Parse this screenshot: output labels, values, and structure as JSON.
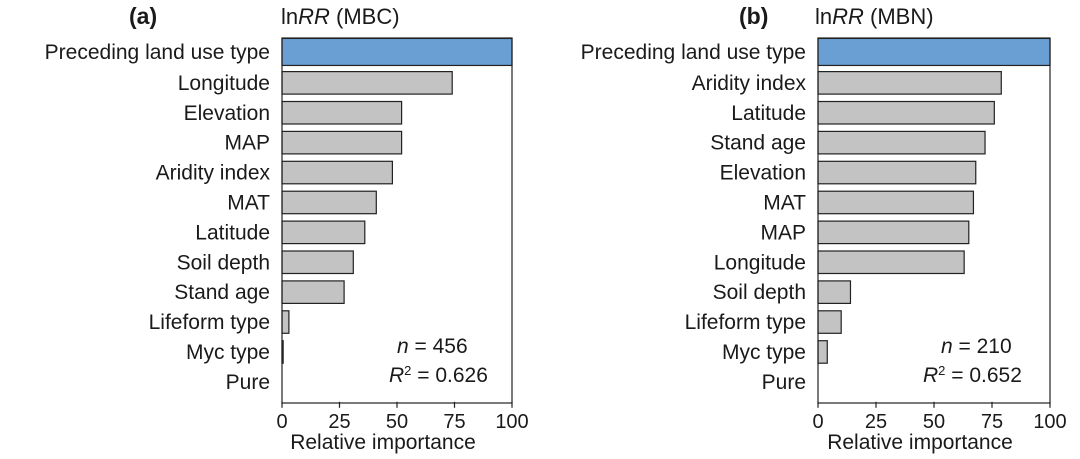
{
  "figure": {
    "panels": [
      {
        "letter": "(a)",
        "title_prefix": "ln",
        "title_italic": "RR",
        "title_suffix": " (MBC)",
        "n_symbol": "n",
        "n_text": " = 456",
        "r2_symbol": "R",
        "r2_exp": "2",
        "r2_text": " = 0.626"
      },
      {
        "letter": "(b)",
        "title_prefix": "ln",
        "title_italic": "RR",
        "title_suffix": " (MBN)",
        "n_symbol": "n",
        "n_text": " = 210",
        "r2_symbol": "R",
        "r2_exp": "2",
        "r2_text": " = 0.652"
      }
    ]
  },
  "chart_data": [
    {
      "type": "bar",
      "orientation": "horizontal",
      "title": "lnRR (MBC)",
      "xlabel": "Relative importance",
      "xlim": [
        0,
        100
      ],
      "xticks": [
        "0",
        "25",
        "50",
        "75",
        "100"
      ],
      "grid": false,
      "categories": [
        "Preceding land use type",
        "Longitude",
        "Elevation",
        "MAP",
        "Aridity index",
        "MAT",
        "Latitude",
        "Soil depth",
        "Stand age",
        "Lifeform type",
        "Myc type",
        "Pure"
      ],
      "values": [
        100,
        74,
        52,
        52,
        48,
        41,
        36,
        31,
        27,
        3,
        0.5,
        0
      ],
      "colors": {
        "highlight": "#6a9fd3",
        "bar": "#c3c3c3",
        "edge": "#222222"
      },
      "annotations": [
        "n = 456",
        "R2 = 0.626"
      ]
    },
    {
      "type": "bar",
      "orientation": "horizontal",
      "title": "lnRR (MBN)",
      "xlabel": "Relative importance",
      "xlim": [
        0,
        100
      ],
      "xticks": [
        "0",
        "25",
        "50",
        "75",
        "100"
      ],
      "grid": false,
      "categories": [
        "Preceding land use type",
        "Aridity index",
        "Latitude",
        "Stand age",
        "Elevation",
        "MAT",
        "MAP",
        "Longitude",
        "Soil depth",
        "Lifeform type",
        "Myc type",
        "Pure"
      ],
      "values": [
        100,
        79,
        76,
        72,
        68,
        67,
        65,
        63,
        14,
        10,
        4,
        0
      ],
      "colors": {
        "highlight": "#6a9fd3",
        "bar": "#c3c3c3",
        "edge": "#222222"
      },
      "annotations": [
        "n = 210",
        "R2 = 0.652"
      ]
    }
  ]
}
